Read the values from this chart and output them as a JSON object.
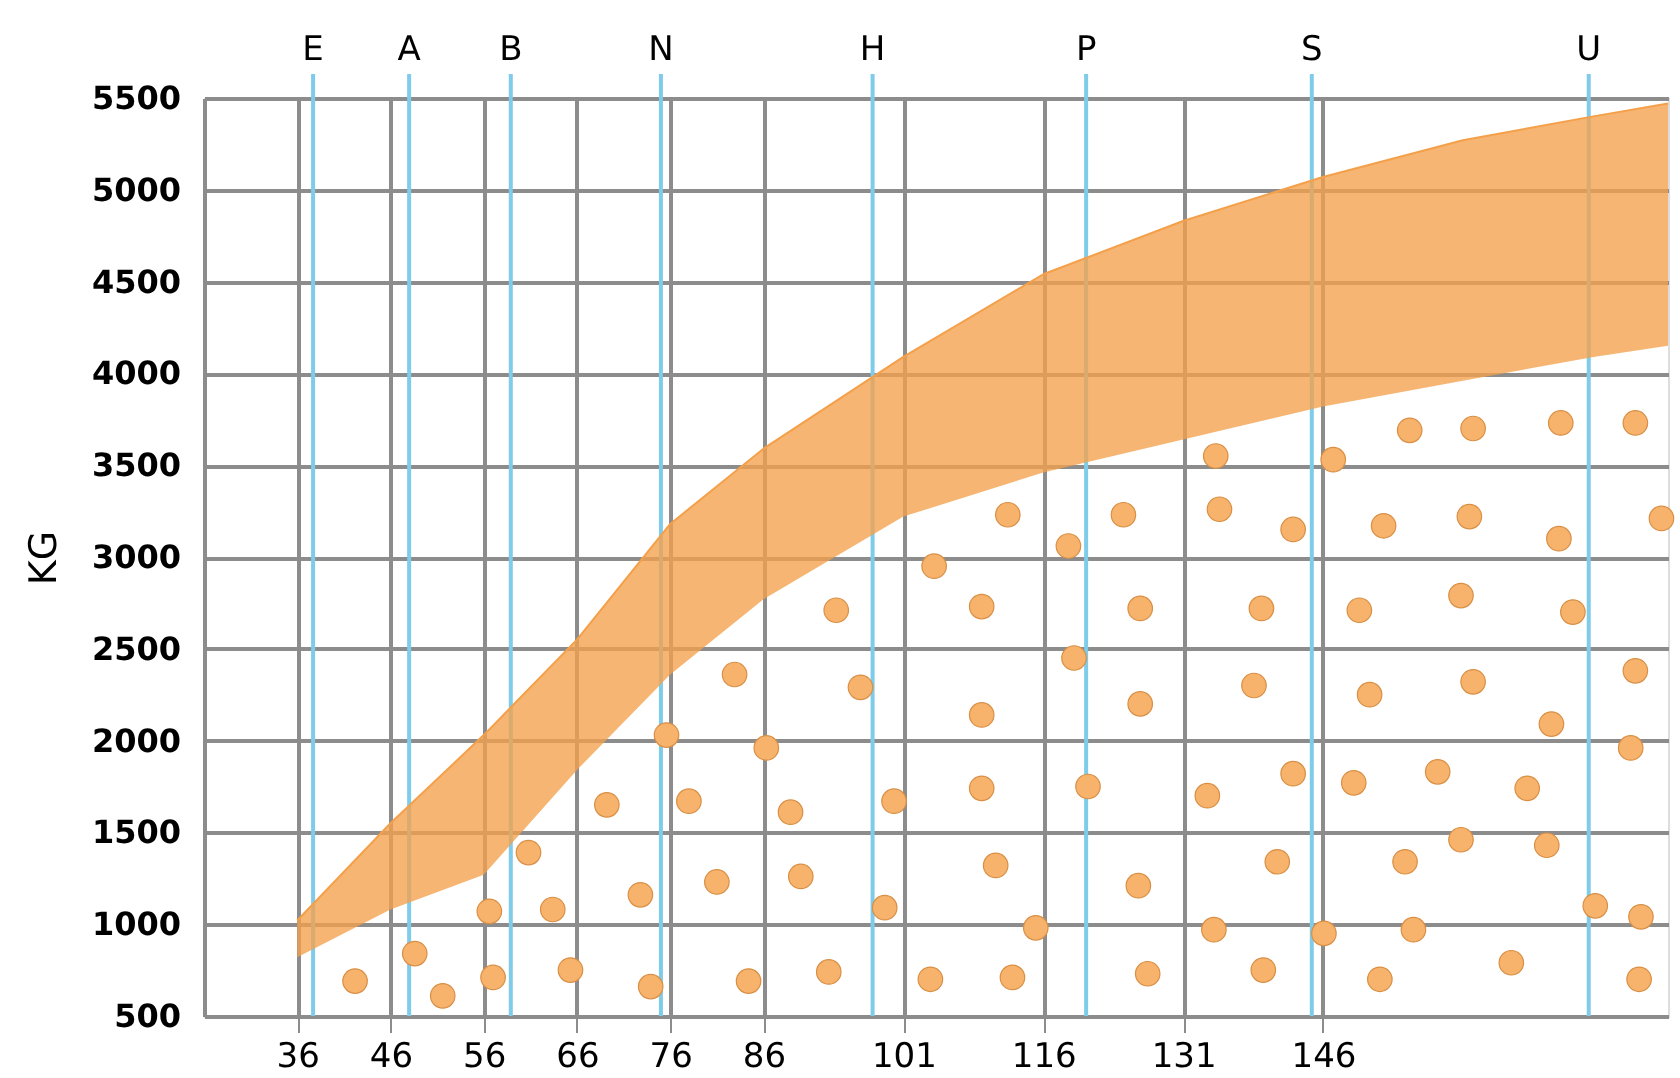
{
  "chart_data": {
    "type": "scatter",
    "ylabel": "KG",
    "xlim": [
      26,
      183
    ],
    "ylim": [
      500,
      5500
    ],
    "xticks": [
      36,
      46,
      56,
      66,
      76,
      86,
      101,
      116,
      131,
      146
    ],
    "yticks": [
      500,
      1000,
      1500,
      2000,
      2500,
      3000,
      3500,
      4000,
      4500,
      5000,
      5500
    ],
    "grid": true,
    "series": [
      {
        "type": "line",
        "color": "#f4a04a",
        "x": [
          36,
          46,
          56,
          66,
          76,
          86,
          101,
          116,
          131,
          146,
          161,
          175,
          183
        ],
        "values": [
          1020,
          1550,
          2030,
          2550,
          3180,
          3590,
          4090,
          4540,
          4830,
          5070,
          5270,
          5400,
          5470
        ],
        "upper": [
          1020,
          1550,
          2030,
          2550,
          3180,
          3590,
          4090,
          4540,
          4830,
          5070,
          5270,
          5400,
          5470
        ],
        "lower": [
          820,
          1080,
          1270,
          1840,
          2360,
          2770,
          3220,
          3460,
          3640,
          3820,
          3960,
          4090,
          4150
        ]
      },
      {
        "marker": "circle",
        "color": "#f7b36b",
        "x": [
          42.2,
          48.6,
          51.6,
          56.6,
          57.0,
          60.8,
          63.4,
          65.3,
          69.2,
          72.8,
          73.9,
          75.6,
          78.0,
          81.0,
          82.9,
          84.4,
          86.3,
          88.9,
          90.0,
          93.0,
          93.8,
          96.4,
          104.3,
          118.7,
          112.2,
          124.6,
          134.5,
          134.9,
          142.8,
          147.1,
          155.3,
          162.1,
          171.5,
          179.5,
          152.5,
          161.7,
          171.3,
          182.3,
          100.0,
          99.0,
          103.9,
          109.4,
          109.4,
          109.4,
          110.9,
          112.7,
          115.2,
          119.3,
          120.8,
          126.4,
          126.4,
          126.2,
          127.2,
          133.6,
          134.3,
          139.4,
          138.6,
          142.8,
          141.1,
          139.6,
          146.1,
          149.9,
          151.0,
          149.3,
          154.8,
          155.7,
          152.1,
          160.8,
          162.1,
          158.3,
          160.8,
          166.2,
          172.8,
          170.5,
          167.9,
          170.0,
          175.2,
          179.5,
          179.0,
          180.1,
          179.9
        ],
        "values": [
          690,
          840,
          610,
          1070,
          710,
          1390,
          1080,
          750,
          1650,
          1160,
          660,
          2030,
          1670,
          1230,
          2360,
          690,
          1960,
          1610,
          1260,
          740,
          2710,
          2290,
          2950,
          3060,
          3230,
          3230,
          3550,
          3260,
          3150,
          3530,
          3690,
          3700,
          3730,
          3730,
          3170,
          3220,
          3100,
          3210,
          1670,
          1090,
          700,
          2730,
          2140,
          1740,
          1320,
          710,
          980,
          2450,
          1750,
          2720,
          2200,
          1210,
          730,
          1700,
          970,
          2720,
          2300,
          1820,
          1340,
          750,
          950,
          2710,
          2250,
          1770,
          1340,
          970,
          700,
          2790,
          2320,
          1830,
          1460,
          790,
          2700,
          2090,
          1740,
          1430,
          1100,
          2380,
          1960,
          1040,
          700
        ]
      }
    ],
    "ref_lines": [
      {
        "axis": "x",
        "value": 37.7,
        "label": "E",
        "color": "#7ecbea"
      },
      {
        "axis": "x",
        "value": 48.0,
        "label": "A",
        "color": "#7ecbea"
      },
      {
        "axis": "x",
        "value": 58.9,
        "label": "B",
        "color": "#7ecbea"
      },
      {
        "axis": "x",
        "value": 75.0,
        "label": "N",
        "color": "#7ecbea"
      },
      {
        "axis": "x",
        "value": 97.7,
        "label": "H",
        "color": "#7ecbea"
      },
      {
        "axis": "x",
        "value": 120.6,
        "label": "P",
        "color": "#7ecbea"
      },
      {
        "axis": "x",
        "value": 144.8,
        "label": "S",
        "color": "#7ecbea"
      },
      {
        "axis": "x",
        "value": 174.5,
        "label": "U",
        "color": "#7ecbea"
      }
    ]
  }
}
